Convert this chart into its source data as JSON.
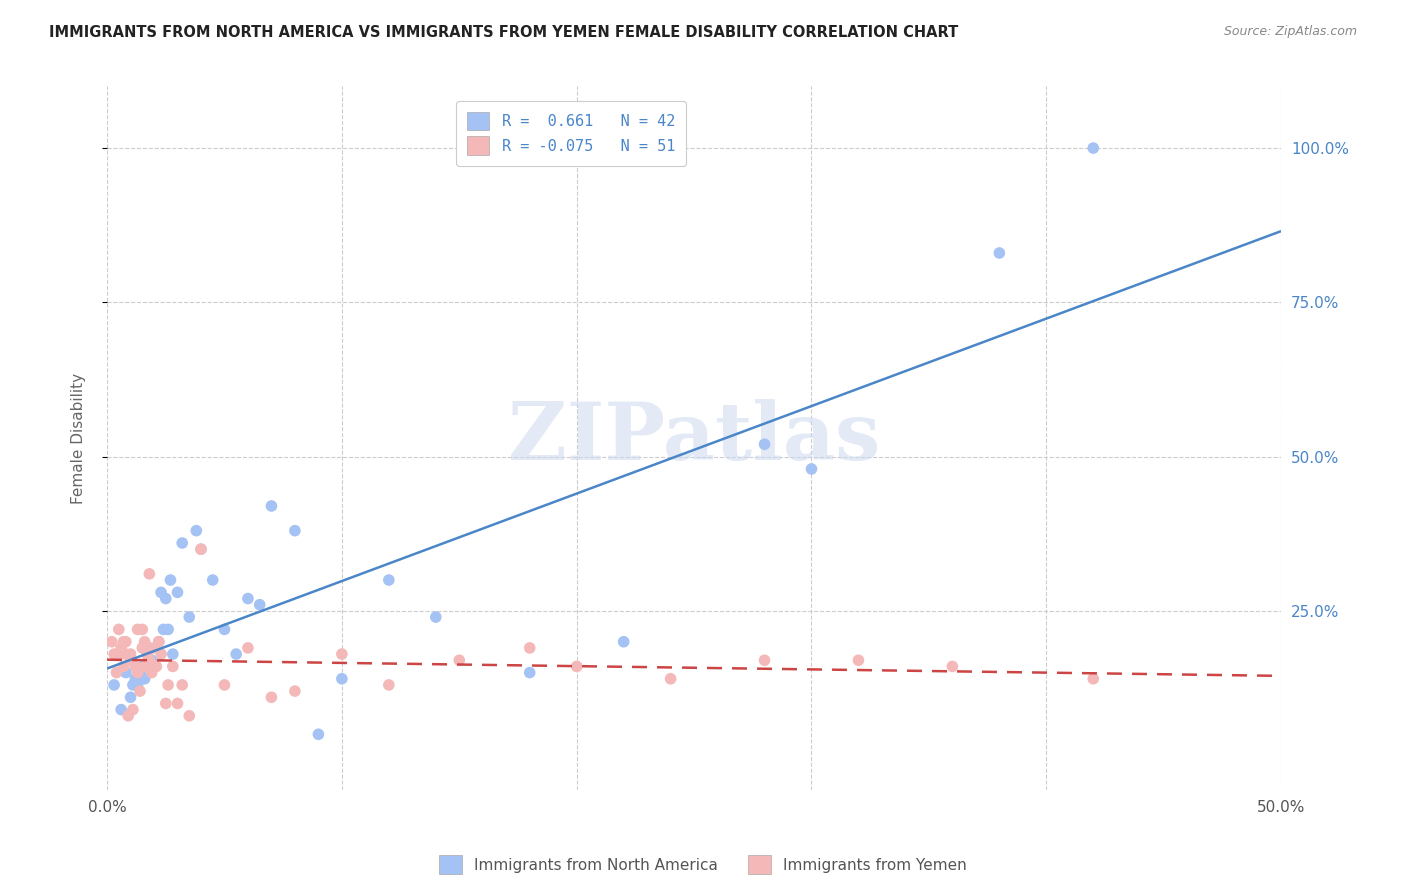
{
  "title": "IMMIGRANTS FROM NORTH AMERICA VS IMMIGRANTS FROM YEMEN FEMALE DISABILITY CORRELATION CHART",
  "source": "Source: ZipAtlas.com",
  "ylabel": "Female Disability",
  "right_yticks": [
    "100.0%",
    "75.0%",
    "50.0%",
    "25.0%"
  ],
  "right_ytick_vals": [
    1.0,
    0.75,
    0.5,
    0.25
  ],
  "xlim": [
    0.0,
    0.5
  ],
  "ylim": [
    -0.04,
    1.1
  ],
  "blue_color": "#a4c2f4",
  "pink_color": "#f4b8b8",
  "blue_line_color": "#4a86c8",
  "pink_line_color": "#cc4444",
  "background_color": "#ffffff",
  "watermark": "ZIPatlas",
  "north_america_x": [
    0.003,
    0.006,
    0.008,
    0.01,
    0.011,
    0.012,
    0.013,
    0.014,
    0.015,
    0.016,
    0.018,
    0.019,
    0.02,
    0.022,
    0.023,
    0.024,
    0.025,
    0.026,
    0.027,
    0.028,
    0.03,
    0.032,
    0.035,
    0.038,
    0.04,
    0.045,
    0.05,
    0.055,
    0.06,
    0.065,
    0.07,
    0.08,
    0.09,
    0.1,
    0.12,
    0.14,
    0.18,
    0.22,
    0.28,
    0.3,
    0.38,
    0.42
  ],
  "north_america_y": [
    0.13,
    0.09,
    0.15,
    0.11,
    0.13,
    0.14,
    0.13,
    0.15,
    0.16,
    0.14,
    0.19,
    0.17,
    0.16,
    0.2,
    0.28,
    0.22,
    0.27,
    0.22,
    0.3,
    0.18,
    0.28,
    0.36,
    0.24,
    0.38,
    0.35,
    0.3,
    0.22,
    0.18,
    0.27,
    0.26,
    0.42,
    0.38,
    0.05,
    0.14,
    0.3,
    0.24,
    0.15,
    0.2,
    0.52,
    0.48,
    0.83,
    1.0
  ],
  "yemen_x": [
    0.002,
    0.003,
    0.004,
    0.005,
    0.005,
    0.006,
    0.007,
    0.007,
    0.008,
    0.008,
    0.009,
    0.01,
    0.01,
    0.011,
    0.012,
    0.013,
    0.013,
    0.014,
    0.015,
    0.015,
    0.016,
    0.016,
    0.017,
    0.018,
    0.018,
    0.019,
    0.02,
    0.021,
    0.022,
    0.023,
    0.025,
    0.026,
    0.028,
    0.03,
    0.032,
    0.035,
    0.04,
    0.05,
    0.06,
    0.07,
    0.08,
    0.1,
    0.12,
    0.15,
    0.18,
    0.2,
    0.24,
    0.28,
    0.32,
    0.36,
    0.42
  ],
  "yemen_y": [
    0.2,
    0.18,
    0.15,
    0.22,
    0.18,
    0.19,
    0.2,
    0.16,
    0.18,
    0.2,
    0.08,
    0.18,
    0.17,
    0.09,
    0.16,
    0.22,
    0.15,
    0.12,
    0.19,
    0.22,
    0.16,
    0.2,
    0.18,
    0.31,
    0.17,
    0.15,
    0.19,
    0.16,
    0.2,
    0.18,
    0.1,
    0.13,
    0.16,
    0.1,
    0.13,
    0.08,
    0.35,
    0.13,
    0.19,
    0.11,
    0.12,
    0.18,
    0.13,
    0.17,
    0.19,
    0.16,
    0.14,
    0.17,
    0.17,
    0.16,
    0.14
  ]
}
